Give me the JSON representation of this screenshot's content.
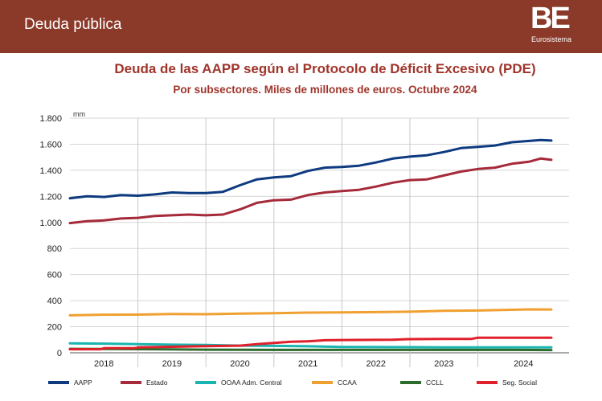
{
  "header": {
    "title": "Deuda pública",
    "logo_mark": "BE",
    "logo_sub": "Eurosistema"
  },
  "colors": {
    "header_bg": "#8b3a2a",
    "title": "#a0352b"
  },
  "chart_data": {
    "type": "line",
    "title": "Deuda de las AAPP según el Protocolo de Déficit Excesivo (PDE)",
    "subtitle": "Por subsectores. Miles de millones de euros. Octubre 2024",
    "unit_label": "mm",
    "ylim": [
      0,
      1800
    ],
    "y_ticks": [
      0,
      200,
      400,
      600,
      800,
      1000,
      1200,
      1400,
      1600,
      1800
    ],
    "y_tick_labels": [
      "0",
      "200",
      "400",
      "600",
      "800",
      "1.000",
      "1.200",
      "1.400",
      "1.600",
      "1.800"
    ],
    "x_start": 2017.5,
    "x_end": 2024.84,
    "year_labels": [
      "2018",
      "2019",
      "2020",
      "2021",
      "2022",
      "2023",
      "2024"
    ],
    "year_dividers": [
      2018.5,
      2019.5,
      2020.5,
      2021.5,
      2022.5,
      2023.5
    ],
    "grid": true,
    "legend_position": "bottom",
    "series": [
      {
        "name": "AAPP",
        "color": "#0e3a80",
        "points": [
          [
            2017.5,
            1185
          ],
          [
            2017.75,
            1200
          ],
          [
            2018.0,
            1195
          ],
          [
            2018.25,
            1210
          ],
          [
            2018.5,
            1205
          ],
          [
            2018.75,
            1215
          ],
          [
            2019.0,
            1230
          ],
          [
            2019.25,
            1225
          ],
          [
            2019.5,
            1225
          ],
          [
            2019.75,
            1235
          ],
          [
            2020.0,
            1285
          ],
          [
            2020.25,
            1330
          ],
          [
            2020.5,
            1345
          ],
          [
            2020.75,
            1355
          ],
          [
            2021.0,
            1395
          ],
          [
            2021.25,
            1420
          ],
          [
            2021.5,
            1425
          ],
          [
            2021.75,
            1435
          ],
          [
            2022.0,
            1460
          ],
          [
            2022.25,
            1490
          ],
          [
            2022.5,
            1505
          ],
          [
            2022.75,
            1515
          ],
          [
            2023.0,
            1540
          ],
          [
            2023.25,
            1570
          ],
          [
            2023.5,
            1580
          ],
          [
            2023.75,
            1590
          ],
          [
            2024.0,
            1615
          ],
          [
            2024.25,
            1625
          ],
          [
            2024.42,
            1632
          ],
          [
            2024.58,
            1628
          ]
        ]
      },
      {
        "name": "Estado",
        "color": "#a52a3a",
        "points": [
          [
            2017.5,
            995
          ],
          [
            2017.75,
            1010
          ],
          [
            2018.0,
            1015
          ],
          [
            2018.25,
            1030
          ],
          [
            2018.5,
            1035
          ],
          [
            2018.75,
            1050
          ],
          [
            2019.0,
            1055
          ],
          [
            2019.25,
            1060
          ],
          [
            2019.5,
            1055
          ],
          [
            2019.75,
            1060
          ],
          [
            2020.0,
            1100
          ],
          [
            2020.25,
            1150
          ],
          [
            2020.5,
            1170
          ],
          [
            2020.75,
            1175
          ],
          [
            2021.0,
            1210
          ],
          [
            2021.25,
            1230
          ],
          [
            2021.5,
            1240
          ],
          [
            2021.75,
            1250
          ],
          [
            2022.0,
            1275
          ],
          [
            2022.25,
            1305
          ],
          [
            2022.5,
            1325
          ],
          [
            2022.75,
            1330
          ],
          [
            2023.0,
            1360
          ],
          [
            2023.25,
            1390
          ],
          [
            2023.5,
            1410
          ],
          [
            2023.75,
            1420
          ],
          [
            2024.0,
            1450
          ],
          [
            2024.25,
            1465
          ],
          [
            2024.42,
            1490
          ],
          [
            2024.58,
            1480
          ]
        ]
      },
      {
        "name": "OOAA Adm. Central",
        "color": "#1ab5b0",
        "points": [
          [
            2017.5,
            72
          ],
          [
            2018.0,
            70
          ],
          [
            2018.5,
            66
          ],
          [
            2019.0,
            62
          ],
          [
            2019.5,
            60
          ],
          [
            2020.0,
            55
          ],
          [
            2020.5,
            53
          ],
          [
            2021.0,
            50
          ],
          [
            2021.5,
            45
          ],
          [
            2022.0,
            44
          ],
          [
            2022.5,
            43
          ],
          [
            2023.0,
            42
          ],
          [
            2023.5,
            42
          ],
          [
            2024.0,
            42
          ],
          [
            2024.58,
            41
          ]
        ]
      },
      {
        "name": "CCAA",
        "color": "#f0a030",
        "points": [
          [
            2017.5,
            287
          ],
          [
            2018.0,
            292
          ],
          [
            2018.5,
            293
          ],
          [
            2019.0,
            297
          ],
          [
            2019.5,
            296
          ],
          [
            2020.0,
            300
          ],
          [
            2020.5,
            303
          ],
          [
            2021.0,
            308
          ],
          [
            2021.5,
            310
          ],
          [
            2022.0,
            312
          ],
          [
            2022.5,
            315
          ],
          [
            2023.0,
            322
          ],
          [
            2023.5,
            324
          ],
          [
            2024.0,
            330
          ],
          [
            2024.25,
            333
          ],
          [
            2024.58,
            332
          ]
        ]
      },
      {
        "name": "CCLL",
        "color": "#2d6b2d",
        "points": [
          [
            2017.5,
            30
          ],
          [
            2018.0,
            29
          ],
          [
            2018.5,
            28
          ],
          [
            2019.0,
            26
          ],
          [
            2019.5,
            24
          ],
          [
            2020.0,
            23
          ],
          [
            2020.5,
            22
          ],
          [
            2021.0,
            22
          ],
          [
            2021.5,
            22
          ],
          [
            2022.0,
            22
          ],
          [
            2022.5,
            22
          ],
          [
            2023.0,
            22
          ],
          [
            2023.5,
            22
          ],
          [
            2024.0,
            22
          ],
          [
            2024.58,
            21
          ]
        ]
      },
      {
        "name": "Seg. Social",
        "color": "#e0202a",
        "points": [
          [
            2017.5,
            27
          ],
          [
            2017.95,
            27
          ],
          [
            2018.0,
            35
          ],
          [
            2018.45,
            35
          ],
          [
            2018.5,
            41
          ],
          [
            2019.0,
            46
          ],
          [
            2019.25,
            49
          ],
          [
            2019.5,
            51
          ],
          [
            2020.0,
            55
          ],
          [
            2020.25,
            66
          ],
          [
            2020.5,
            75
          ],
          [
            2020.75,
            85
          ],
          [
            2021.0,
            88
          ],
          [
            2021.25,
            96
          ],
          [
            2021.5,
            98
          ],
          [
            2022.0,
            99
          ],
          [
            2022.25,
            100
          ],
          [
            2022.5,
            105
          ],
          [
            2023.0,
            106
          ],
          [
            2023.4,
            106
          ],
          [
            2023.5,
            116
          ],
          [
            2024.0,
            116
          ],
          [
            2024.58,
            116
          ]
        ]
      }
    ]
  }
}
